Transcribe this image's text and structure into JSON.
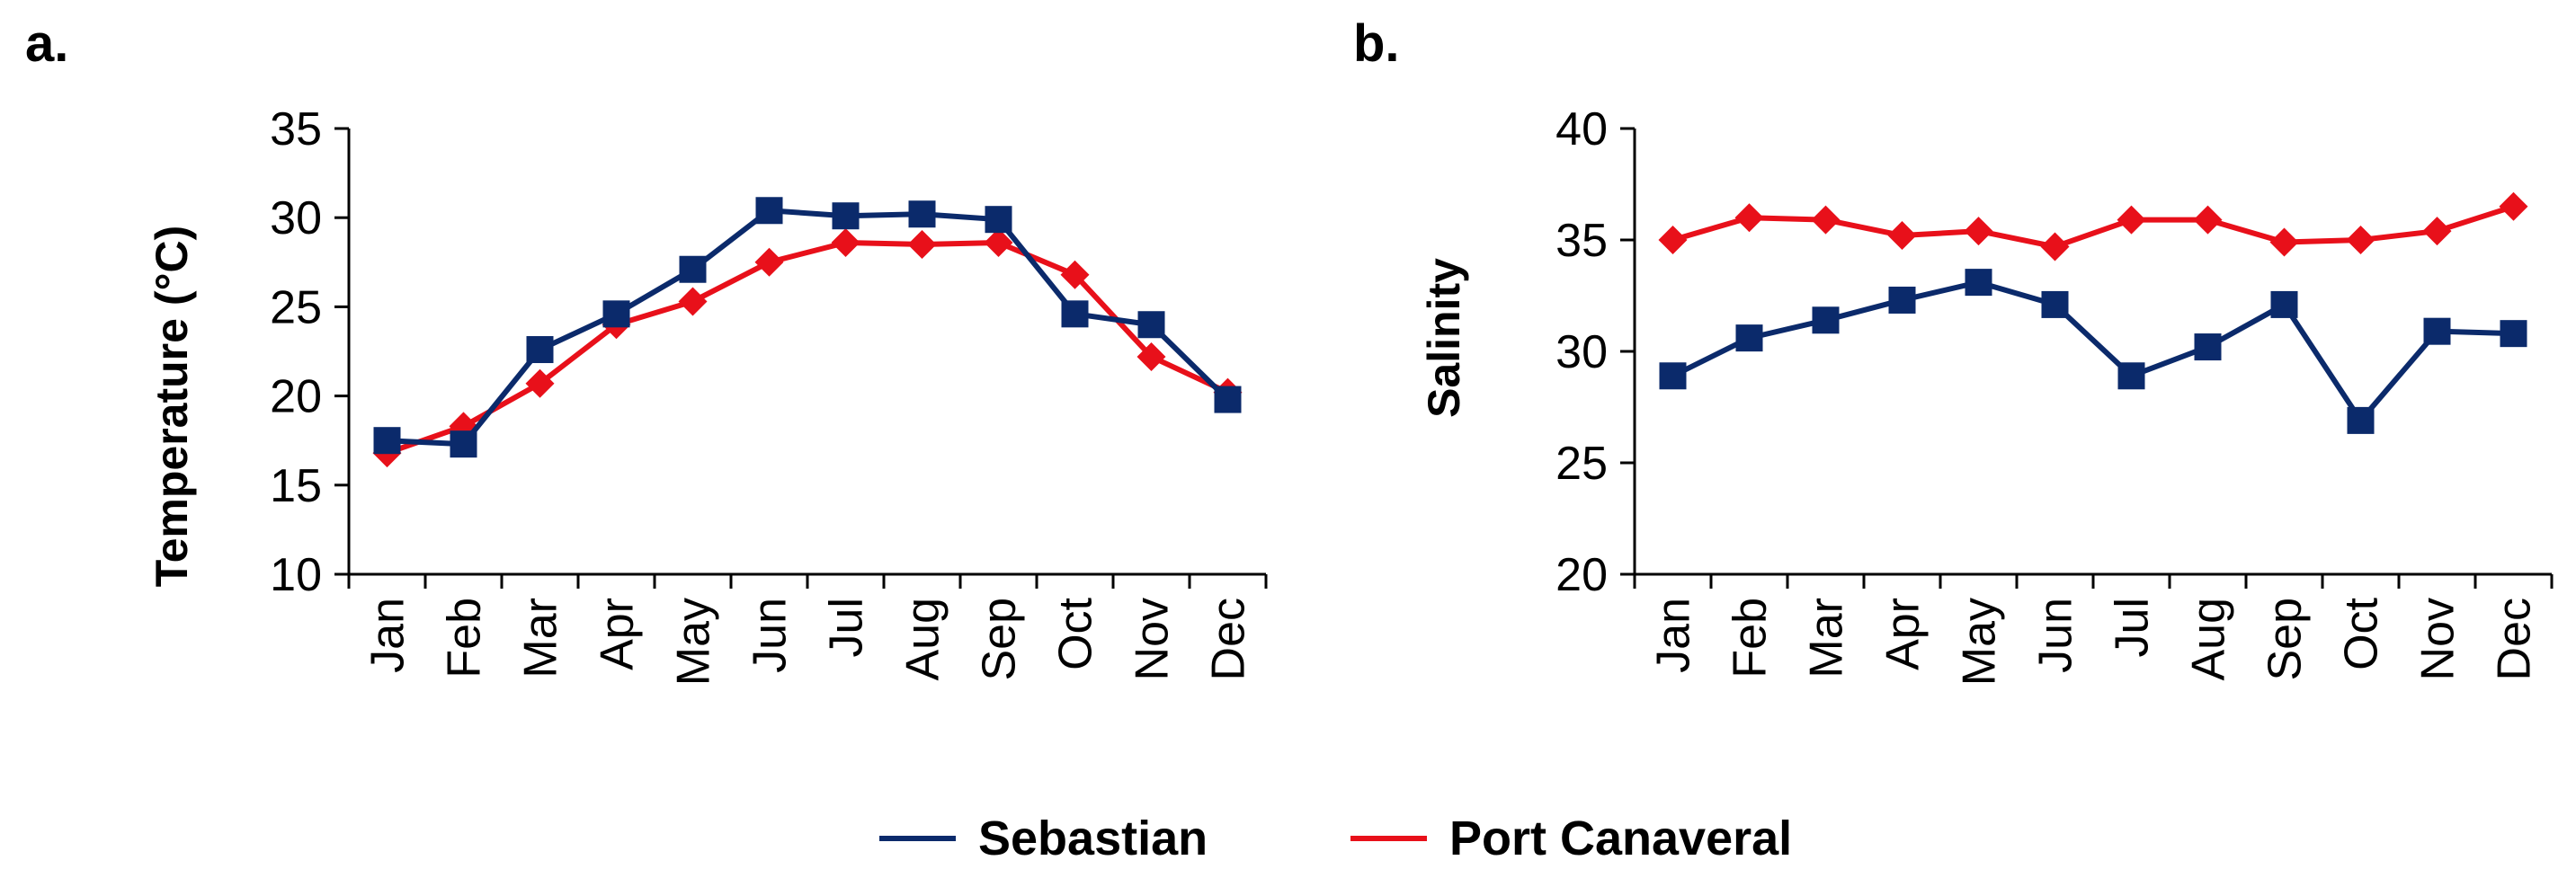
{
  "legend": [
    {
      "name": "Sebastian",
      "color": "#0b2a6b",
      "marker": "square"
    },
    {
      "name": "Port Canaveral",
      "color": "#e8101a",
      "marker": "diamond"
    }
  ],
  "chart_data": [
    {
      "type": "line",
      "panel_label": "a.",
      "title": "",
      "xlabel": "",
      "ylabel": "Temperature (°C)",
      "ylim": [
        10,
        35
      ],
      "yticks": [
        "10",
        "15",
        "20",
        "25",
        "30",
        "35"
      ],
      "categories": [
        "Jan",
        "Feb",
        "Mar",
        "Apr",
        "May",
        "Jun",
        "Jul",
        "Aug",
        "Sep",
        "Oct",
        "Nov",
        "Dec"
      ],
      "series": [
        {
          "name": "Sebastian",
          "values": [
            17.5,
            17.3,
            22.6,
            24.6,
            27.1,
            30.4,
            30.1,
            30.2,
            29.9,
            24.6,
            24.0,
            19.8
          ]
        },
        {
          "name": "Port Canaveral",
          "values": [
            16.8,
            18.3,
            20.7,
            24.0,
            25.3,
            27.5,
            28.6,
            28.5,
            28.6,
            26.8,
            22.2,
            20.2
          ]
        }
      ]
    },
    {
      "type": "line",
      "panel_label": "b.",
      "title": "",
      "xlabel": "",
      "ylabel": "Salinity",
      "ylim": [
        20,
        40
      ],
      "yticks": [
        "20",
        "25",
        "30",
        "35",
        "40"
      ],
      "categories": [
        "Jan",
        "Feb",
        "Mar",
        "Apr",
        "May",
        "Jun",
        "Jul",
        "Aug",
        "Sep",
        "Oct",
        "Nov",
        "Dec"
      ],
      "series": [
        {
          "name": "Sebastian",
          "values": [
            28.9,
            30.6,
            31.4,
            32.3,
            33.1,
            32.1,
            28.9,
            30.2,
            32.1,
            26.9,
            30.9,
            30.8
          ]
        },
        {
          "name": "Port Canaveral",
          "values": [
            35.0,
            36.0,
            35.9,
            35.2,
            35.4,
            34.7,
            35.9,
            35.9,
            34.9,
            35.0,
            35.4,
            36.5
          ]
        }
      ]
    }
  ]
}
